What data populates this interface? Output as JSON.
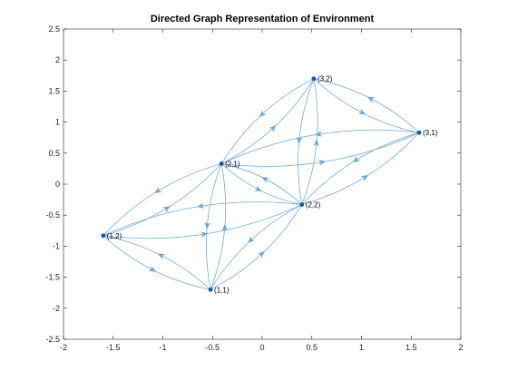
{
  "chart_data": {
    "type": "network",
    "title": "Directed Graph Representation of Environment",
    "xlim": [
      -2,
      2
    ],
    "ylim": [
      -2.5,
      2.5
    ],
    "xticks": [
      "-2",
      "-1.5",
      "-1",
      "-0.5",
      "0",
      "0.5",
      "1",
      "1.5",
      "2"
    ],
    "yticks": [
      "-2.5",
      "-2",
      "-1.5",
      "-1",
      "-0.5",
      "0",
      "0.5",
      "1",
      "1.5",
      "2",
      "2.5"
    ],
    "grid": false,
    "colors": {
      "edge": "#6aa9d6",
      "node": "#0b5ea8",
      "axis": "#262626"
    },
    "nodes": [
      {
        "id": "1,1",
        "label": "(1,1)",
        "x": -0.52,
        "y": -1.7
      },
      {
        "id": "1,2",
        "label": "(1,2)",
        "x": -1.6,
        "y": -0.83
      },
      {
        "id": "2,1",
        "label": "(2,1)",
        "x": -0.41,
        "y": 0.33
      },
      {
        "id": "2,2",
        "label": "(2,2)",
        "x": 0.4,
        "y": -0.33
      },
      {
        "id": "3,1",
        "label": "(3,1)",
        "x": 1.58,
        "y": 0.83
      },
      {
        "id": "3,2",
        "label": "(3,2)",
        "x": 0.52,
        "y": 1.7
      }
    ],
    "edges": [
      {
        "source": "1,1",
        "target": "1,2"
      },
      {
        "source": "1,2",
        "target": "1,1"
      },
      {
        "source": "1,1",
        "target": "2,1"
      },
      {
        "source": "2,1",
        "target": "1,1"
      },
      {
        "source": "1,1",
        "target": "2,2"
      },
      {
        "source": "2,2",
        "target": "1,1"
      },
      {
        "source": "1,2",
        "target": "2,1"
      },
      {
        "source": "2,1",
        "target": "1,2"
      },
      {
        "source": "1,2",
        "target": "2,2"
      },
      {
        "source": "2,2",
        "target": "1,2"
      },
      {
        "source": "2,1",
        "target": "2,2"
      },
      {
        "source": "2,2",
        "target": "2,1"
      },
      {
        "source": "2,1",
        "target": "3,1"
      },
      {
        "source": "3,1",
        "target": "2,1"
      },
      {
        "source": "2,1",
        "target": "3,2"
      },
      {
        "source": "3,2",
        "target": "2,1"
      },
      {
        "source": "2,2",
        "target": "3,1"
      },
      {
        "source": "3,1",
        "target": "2,2"
      },
      {
        "source": "2,2",
        "target": "3,2"
      },
      {
        "source": "3,2",
        "target": "2,2"
      },
      {
        "source": "3,1",
        "target": "3,2"
      },
      {
        "source": "3,2",
        "target": "3,1"
      }
    ]
  }
}
